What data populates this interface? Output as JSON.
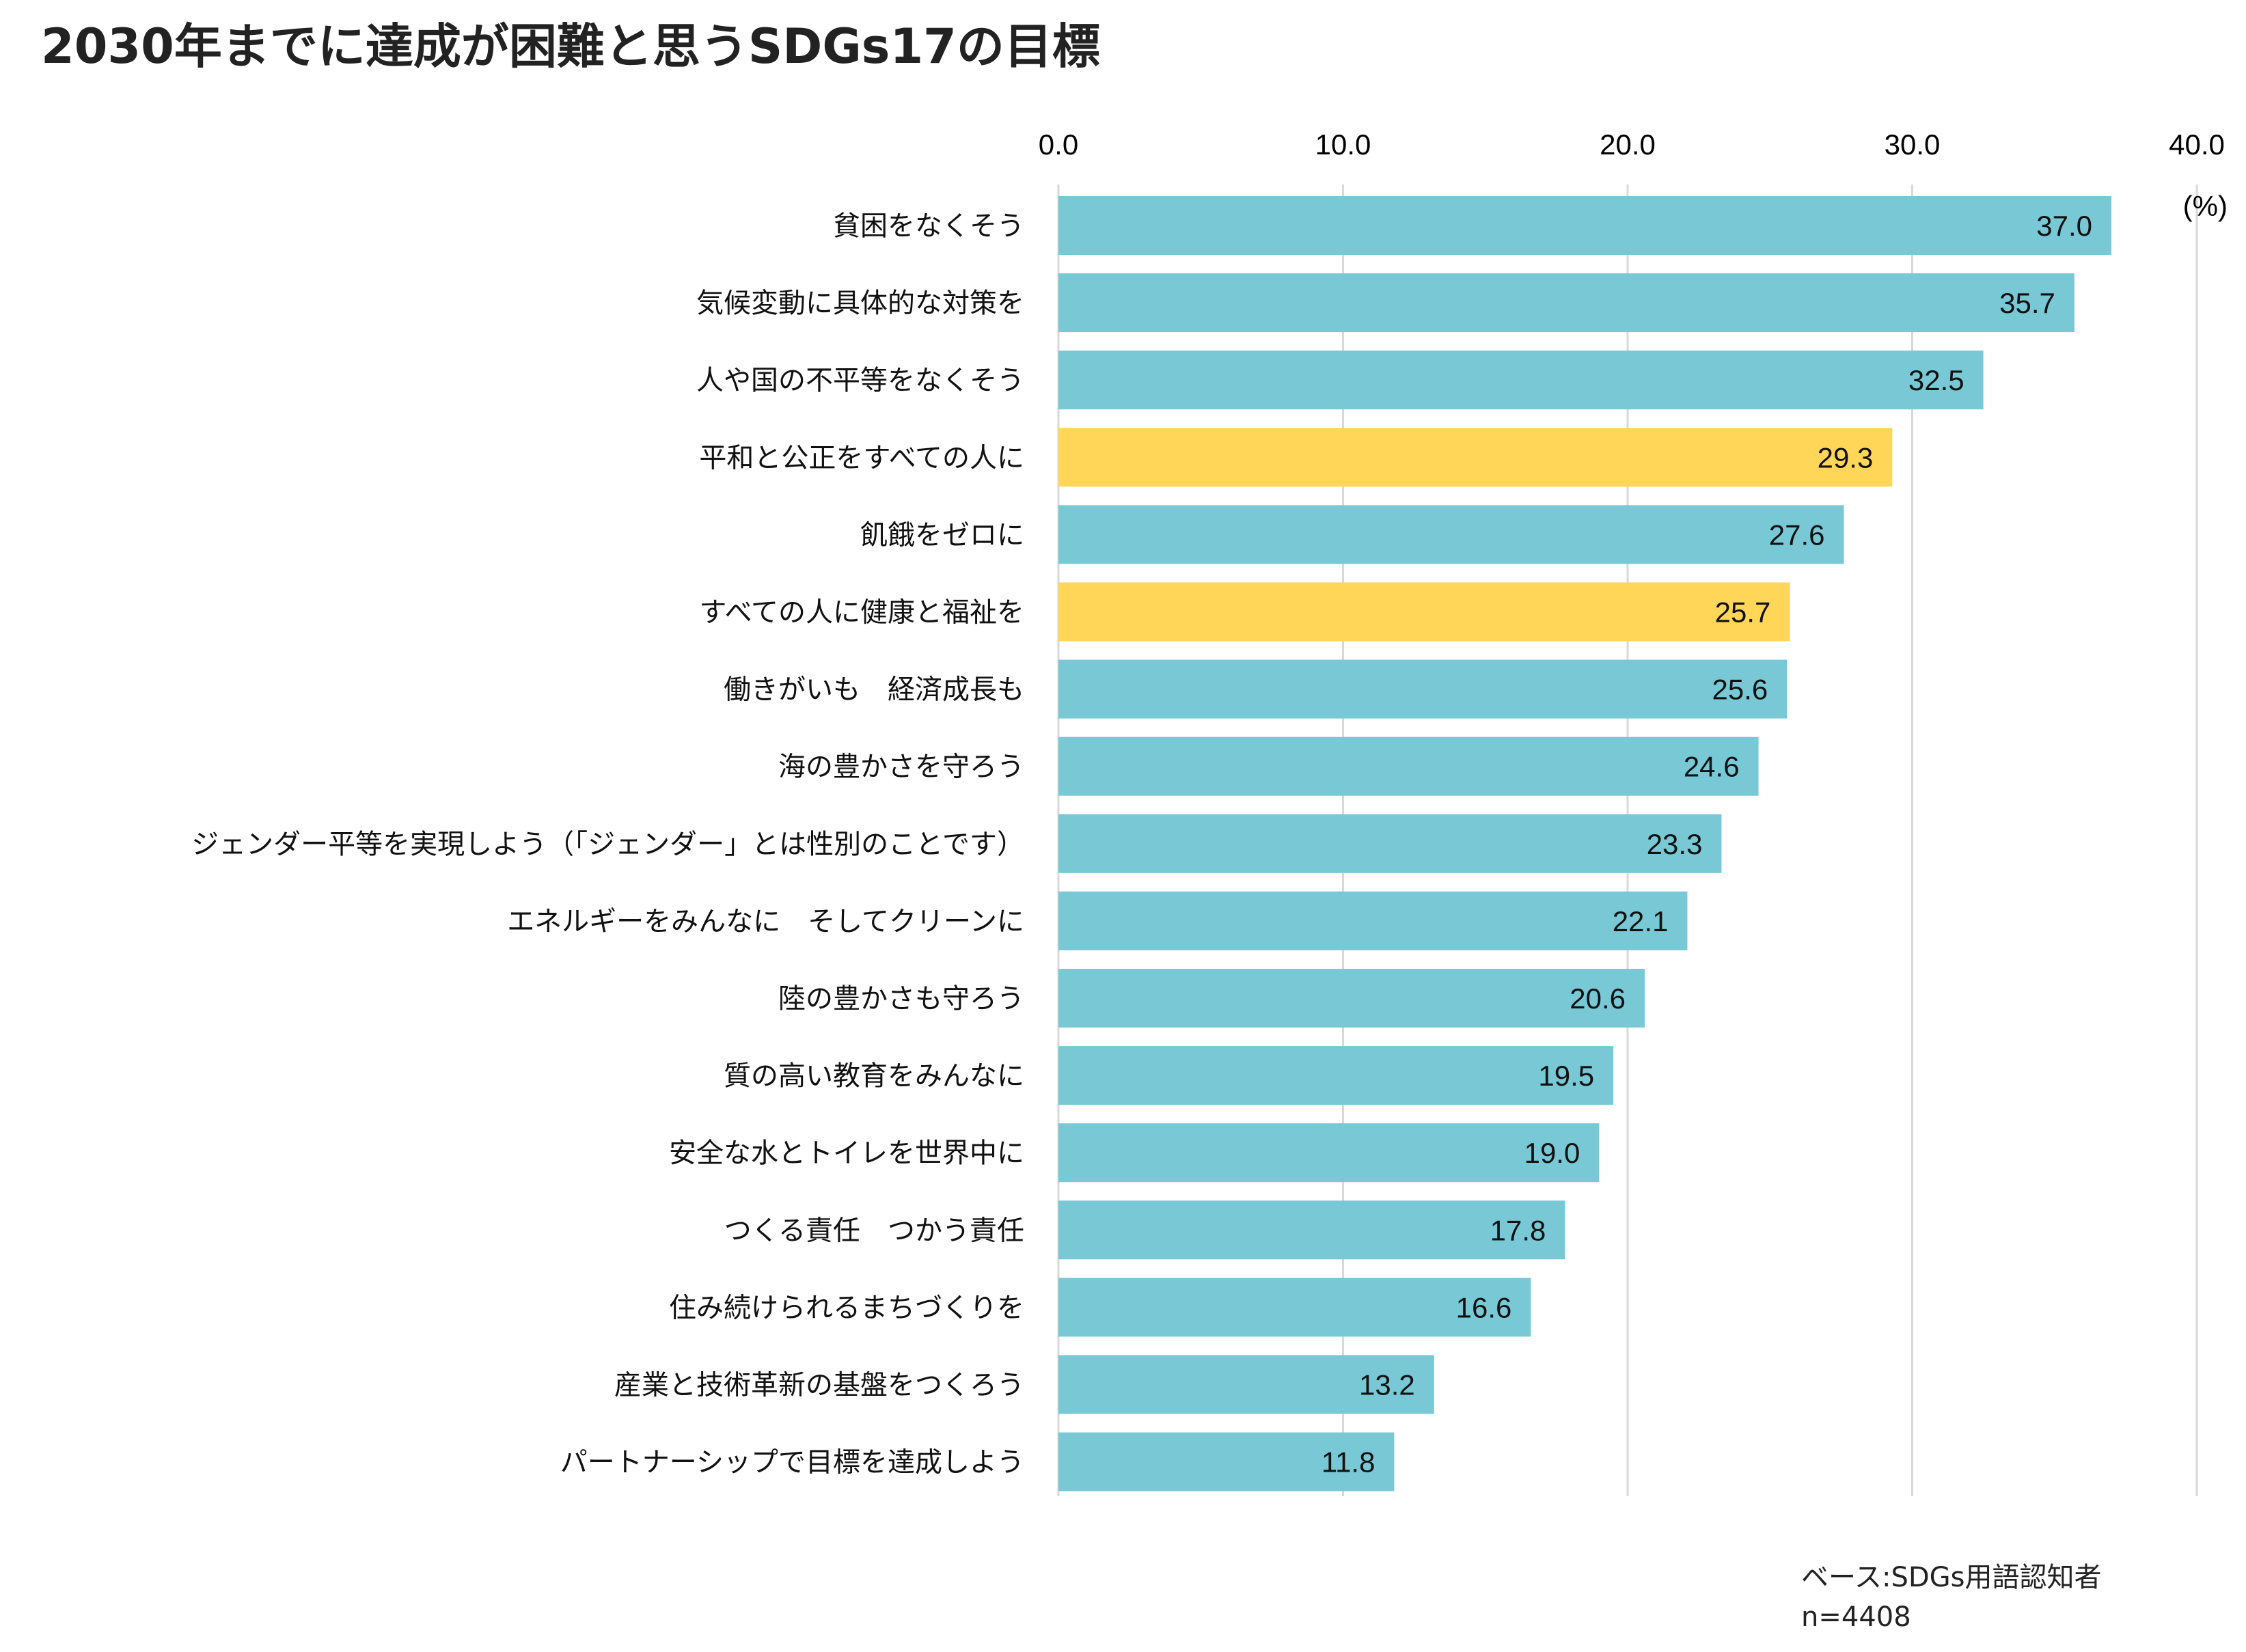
{
  "chart_data": {
    "type": "bar",
    "orientation": "horizontal",
    "title": "2030年までに達成が困難と思うSDGs17の目標",
    "unit_label": "(%)",
    "xlim": [
      0,
      40
    ],
    "ticks": [
      "0.0",
      "10.0",
      "20.0",
      "30.0",
      "40.0"
    ],
    "tick_values": [
      0,
      10,
      20,
      30,
      40
    ],
    "grid": true,
    "categories": [
      "貧困をなくそう",
      "気候変動に具体的な対策を",
      "人や国の不平等をなくそう",
      "平和と公正をすべての人に",
      "飢餓をゼロに",
      "すべての人に健康と福祉を",
      "働きがいも　経済成長も",
      "海の豊かさを守ろう",
      "ジェンダー平等を実現しよう（「ジェンダー」とは性別のことです）",
      "エネルギーをみんなに　そしてクリーンに",
      "陸の豊かさも守ろう",
      "質の高い教育をみんなに",
      "安全な水とトイレを世界中に",
      "つくる責任　つかう責任",
      "住み続けられるまちづくりを",
      "産業と技術革新の基盤をつくろう",
      "パートナーシップで目標を達成しよう"
    ],
    "values": [
      37.0,
      35.7,
      32.5,
      29.3,
      27.6,
      25.7,
      25.6,
      24.6,
      23.3,
      22.1,
      20.6,
      19.5,
      19.0,
      17.8,
      16.6,
      13.2,
      11.8
    ],
    "highlighted": [
      3,
      5
    ],
    "colors": {
      "default": "#78C8D6",
      "highlight": "#FFD657",
      "grid": "#D9D9D9"
    }
  },
  "footnote": {
    "base": "ベース:SDGs用語認知者",
    "n": "n=4408"
  }
}
